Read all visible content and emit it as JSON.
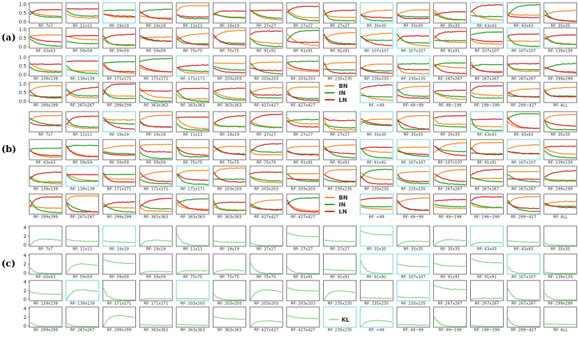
{
  "chart_data": [
    {
      "type": "line",
      "panel": "(a)",
      "rf_labels": [
        [
          "RF: 7x7",
          "RF: 11x11",
          "RF: 19x19",
          "RF: 19x19",
          "RF: 11x11",
          "RF: 19x19",
          "RF: 27x27",
          "RF: 27x27",
          "RF: 27x27",
          "RF: 35x35",
          "RF: 35x35",
          "RF: 35x35",
          "RF: 43x43",
          "RF: 43x43",
          "RF: 35x35"
        ],
        [
          "RF: 43x43",
          "RF: 59x59",
          "RF: 59x59",
          "RF: 59x59",
          "RF: 75x75",
          "RF: 75x75",
          "RF: 91x91",
          "RF: 91x91",
          "RF: 91x91",
          "RF: 107x107",
          "RF: 107x107",
          "RF: 91x91",
          "RF: 107x107",
          "RF: 107x107",
          "RF: 139x139"
        ],
        [
          "RF: 139x139",
          "RF: 139x139",
          "RF: 171x171",
          "RF: 171x171",
          "RF: 171x171",
          "RF: 203x203",
          "RF: 203x203",
          "RF: 203x203",
          "RF: 235x235",
          "RF: 235x235",
          "RF: 235x235",
          "RF: 267x267",
          "RF: 267x267",
          "RF: 267x267",
          "RF: 299x299"
        ],
        [
          "RF: 299x299",
          "RF: 267x267",
          "RF: 299x299",
          "RF: 363x363",
          "RF: 363x363",
          "RF: 363x363",
          "RF: 427x427",
          "RF: 427x427",
          "",
          "RF: <49",
          "RF: 49~99",
          "RF: 99~199",
          "RF: 199~299",
          "RF: 299~427",
          "RF: ALL"
        ]
      ],
      "yticks": [
        "1.0",
        "0.5",
        "0.0"
      ],
      "series": [
        {
          "name": "BN",
          "color": "#f28e2b"
        },
        {
          "name": "IN",
          "color": "#2ca02c"
        },
        {
          "name": "LN",
          "color": "#d62728"
        }
      ],
      "legend_position": "row 4, column 9"
    },
    {
      "type": "line",
      "panel": "(b)",
      "rf_labels": [
        [
          "RF: 7x7",
          "RF: 11x11",
          "RF: 19x19",
          "RF: 19x19",
          "RF: 11x11",
          "RF: 19x19",
          "RF: 27x27",
          "RF: 27x27",
          "RF: 27x27",
          "RF: 35x35",
          "RF: 35x35",
          "RF: 35x35",
          "RF: 43x43",
          "RF: 43x43",
          "RF: 35x35"
        ],
        [
          "RF: 43x43",
          "RF: 59x59",
          "RF: 59x59",
          "RF: 59x59",
          "RF: 75x75",
          "RF: 75x75",
          "RF: 75x75",
          "RF: 91x91",
          "RF: 91x91",
          "RF: 91x91",
          "RF: 107x107",
          "RF: 107x107",
          "RF: 91x91",
          "RF: 107x107",
          "RF: 139x139"
        ],
        [
          "RF: 139x139",
          "RF: 139x139",
          "RF: 171x171",
          "RF: 171x171",
          "RF: 171x171",
          "RF: 203x203",
          "RF: 203x203",
          "RF: 203x203",
          "RF: 235x235",
          "RF: 235x235",
          "RF: 235x235",
          "RF: 267x267",
          "RF: 267x267",
          "RF: 267x267",
          "RF: 299x299"
        ],
        [
          "RF: 299x299",
          "RF: 267x267",
          "RF: 299x299",
          "RF: 363x363",
          "RF: 363x363",
          "RF: 363x363",
          "RF: 427x427",
          "RF: 427x427",
          "",
          "RF: <49",
          "RF: 49~99",
          "RF: 99~199",
          "RF: 199~299",
          "RF: 299~427",
          "RF: ALL"
        ]
      ],
      "yticks": [],
      "series": [
        {
          "name": "BN",
          "color": "#f28e2b"
        },
        {
          "name": "IN",
          "color": "#2ca02c"
        },
        {
          "name": "LN",
          "color": "#d62728"
        }
      ],
      "legend_position": "row 4, column 9"
    },
    {
      "type": "line",
      "panel": "(c)",
      "rf_labels": [
        [
          "RF: 7x7",
          "RF: 11x11",
          "RF: 19x19",
          "RF: 19x19",
          "RF: 11x11",
          "RF: 19x19",
          "RF: 27x27",
          "RF: 27x27",
          "RF: 27x27",
          "RF: 35x35",
          "RF: 35x35",
          "RF: 35x35",
          "RF: 43x43",
          "RF: 43x43",
          "RF: 35x35"
        ],
        [
          "RF: 43x43",
          "RF: 59x59",
          "RF: 59x59",
          "RF: 59x59",
          "RF: 75x75",
          "RF: 75x75",
          "RF: 75x75",
          "RF: 91x91",
          "RF: 91x91",
          "RF: 91x91",
          "RF: 107x107",
          "RF: 91x91",
          "RF: 91x91",
          "RF: 107x107",
          "RF: 139x139"
        ],
        [
          "RF: 139x139",
          "RF: 139x139",
          "RF: 171x171",
          "RF: 171x171",
          "RF: 203x203",
          "RF: 203x203",
          "RF: 203x203",
          "RF: 203x203",
          "RF: 235x235",
          "RF: 235x235",
          "RF: 235x235",
          "RF: 267x267",
          "RF: 267x267",
          "RF: 267x267",
          "RF: 299x299"
        ],
        [
          "RF: 299x299",
          "RF: 267x267",
          "RF: 299x299",
          "RF: 363x363",
          "RF: 363x363",
          "RF: 363x363",
          "RF: 427x427",
          "RF: 427x427",
          "RF: 235x235",
          "RF: <49",
          "RF: 49~99",
          "RF: 99~199",
          "RF: 199~299",
          "RF: 299~427",
          "RF: ALL"
        ]
      ],
      "yticks": [
        "4",
        "2",
        "0"
      ],
      "series": [
        {
          "name": "KL",
          "color": "#7fc97f"
        }
      ],
      "legend_position": "row 4, column 9"
    }
  ]
}
